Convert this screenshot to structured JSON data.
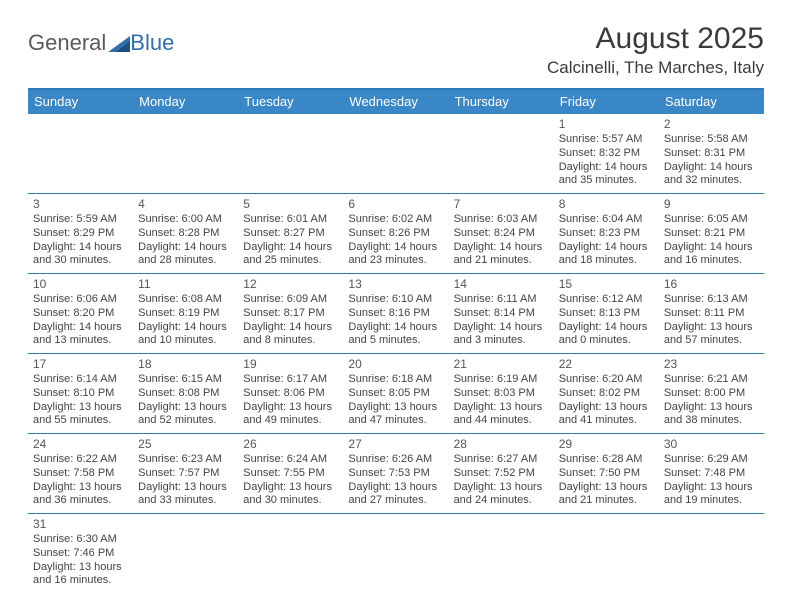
{
  "logo": {
    "text1": "General",
    "text2": "Blue"
  },
  "title": "August 2025",
  "location": "Calcinelli, The Marches, Italy",
  "colors": {
    "header_bg": "#3a87c8",
    "header_text": "#ffffff",
    "rule": "#2f78b6",
    "logo_blue": "#2f6fb0",
    "logo_tri1": "#2f6fb0",
    "logo_tri2": "#1f4f80"
  },
  "days_of_week": [
    "Sunday",
    "Monday",
    "Tuesday",
    "Wednesday",
    "Thursday",
    "Friday",
    "Saturday"
  ],
  "weeks": [
    [
      null,
      null,
      null,
      null,
      null,
      {
        "n": "1",
        "sr": "5:57 AM",
        "ss": "8:32 PM",
        "dl": "14 hours and 35 minutes."
      },
      {
        "n": "2",
        "sr": "5:58 AM",
        "ss": "8:31 PM",
        "dl": "14 hours and 32 minutes."
      }
    ],
    [
      {
        "n": "3",
        "sr": "5:59 AM",
        "ss": "8:29 PM",
        "dl": "14 hours and 30 minutes."
      },
      {
        "n": "4",
        "sr": "6:00 AM",
        "ss": "8:28 PM",
        "dl": "14 hours and 28 minutes."
      },
      {
        "n": "5",
        "sr": "6:01 AM",
        "ss": "8:27 PM",
        "dl": "14 hours and 25 minutes."
      },
      {
        "n": "6",
        "sr": "6:02 AM",
        "ss": "8:26 PM",
        "dl": "14 hours and 23 minutes."
      },
      {
        "n": "7",
        "sr": "6:03 AM",
        "ss": "8:24 PM",
        "dl": "14 hours and 21 minutes."
      },
      {
        "n": "8",
        "sr": "6:04 AM",
        "ss": "8:23 PM",
        "dl": "14 hours and 18 minutes."
      },
      {
        "n": "9",
        "sr": "6:05 AM",
        "ss": "8:21 PM",
        "dl": "14 hours and 16 minutes."
      }
    ],
    [
      {
        "n": "10",
        "sr": "6:06 AM",
        "ss": "8:20 PM",
        "dl": "14 hours and 13 minutes."
      },
      {
        "n": "11",
        "sr": "6:08 AM",
        "ss": "8:19 PM",
        "dl": "14 hours and 10 minutes."
      },
      {
        "n": "12",
        "sr": "6:09 AM",
        "ss": "8:17 PM",
        "dl": "14 hours and 8 minutes."
      },
      {
        "n": "13",
        "sr": "6:10 AM",
        "ss": "8:16 PM",
        "dl": "14 hours and 5 minutes."
      },
      {
        "n": "14",
        "sr": "6:11 AM",
        "ss": "8:14 PM",
        "dl": "14 hours and 3 minutes."
      },
      {
        "n": "15",
        "sr": "6:12 AM",
        "ss": "8:13 PM",
        "dl": "14 hours and 0 minutes."
      },
      {
        "n": "16",
        "sr": "6:13 AM",
        "ss": "8:11 PM",
        "dl": "13 hours and 57 minutes."
      }
    ],
    [
      {
        "n": "17",
        "sr": "6:14 AM",
        "ss": "8:10 PM",
        "dl": "13 hours and 55 minutes."
      },
      {
        "n": "18",
        "sr": "6:15 AM",
        "ss": "8:08 PM",
        "dl": "13 hours and 52 minutes."
      },
      {
        "n": "19",
        "sr": "6:17 AM",
        "ss": "8:06 PM",
        "dl": "13 hours and 49 minutes."
      },
      {
        "n": "20",
        "sr": "6:18 AM",
        "ss": "8:05 PM",
        "dl": "13 hours and 47 minutes."
      },
      {
        "n": "21",
        "sr": "6:19 AM",
        "ss": "8:03 PM",
        "dl": "13 hours and 44 minutes."
      },
      {
        "n": "22",
        "sr": "6:20 AM",
        "ss": "8:02 PM",
        "dl": "13 hours and 41 minutes."
      },
      {
        "n": "23",
        "sr": "6:21 AM",
        "ss": "8:00 PM",
        "dl": "13 hours and 38 minutes."
      }
    ],
    [
      {
        "n": "24",
        "sr": "6:22 AM",
        "ss": "7:58 PM",
        "dl": "13 hours and 36 minutes."
      },
      {
        "n": "25",
        "sr": "6:23 AM",
        "ss": "7:57 PM",
        "dl": "13 hours and 33 minutes."
      },
      {
        "n": "26",
        "sr": "6:24 AM",
        "ss": "7:55 PM",
        "dl": "13 hours and 30 minutes."
      },
      {
        "n": "27",
        "sr": "6:26 AM",
        "ss": "7:53 PM",
        "dl": "13 hours and 27 minutes."
      },
      {
        "n": "28",
        "sr": "6:27 AM",
        "ss": "7:52 PM",
        "dl": "13 hours and 24 minutes."
      },
      {
        "n": "29",
        "sr": "6:28 AM",
        "ss": "7:50 PM",
        "dl": "13 hours and 21 minutes."
      },
      {
        "n": "30",
        "sr": "6:29 AM",
        "ss": "7:48 PM",
        "dl": "13 hours and 19 minutes."
      }
    ],
    [
      {
        "n": "31",
        "sr": "6:30 AM",
        "ss": "7:46 PM",
        "dl": "13 hours and 16 minutes."
      },
      null,
      null,
      null,
      null,
      null,
      null
    ]
  ],
  "labels": {
    "sunrise": "Sunrise: ",
    "sunset": "Sunset: ",
    "daylight": "Daylight: "
  }
}
